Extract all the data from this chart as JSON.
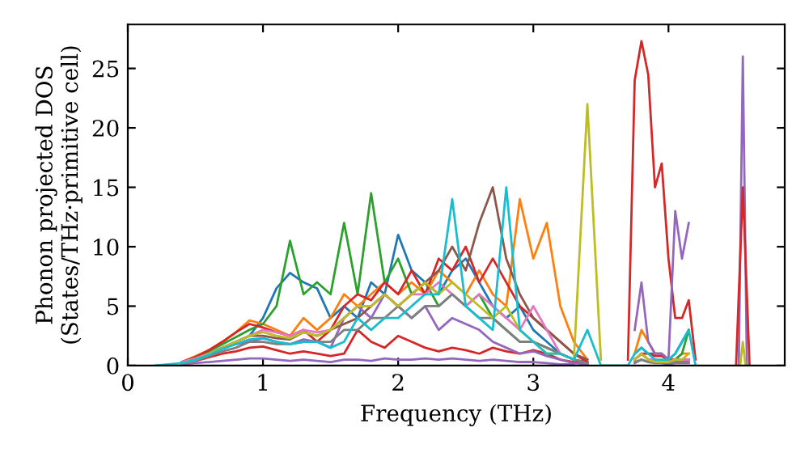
{
  "chart_data": {
    "type": "line",
    "xlabel": "Frequency (THz)",
    "ylabel": "Phonon projected DOS\n(States/THz·primitive cell)",
    "x": [
      0.2,
      0.3,
      0.4,
      0.5,
      0.6,
      0.7,
      0.8,
      0.9,
      1.0,
      1.1,
      1.2,
      1.3,
      1.4,
      1.5,
      1.6,
      1.7,
      1.8,
      1.9,
      2.0,
      2.1,
      2.2,
      2.3,
      2.4,
      2.5,
      2.6,
      2.7,
      2.8,
      2.9,
      3.0,
      3.1,
      3.2,
      3.3,
      3.4,
      3.5,
      3.6,
      3.65,
      3.7,
      3.75,
      3.8,
      3.85,
      3.9,
      3.95,
      4.0,
      4.05,
      4.1,
      4.15,
      4.2
    ],
    "series": [
      {
        "color": "#1f77b4",
        "values": [
          null,
          null,
          0.3,
          0.6,
          1,
          1.5,
          2,
          2.5,
          4,
          6.5,
          7.8,
          7,
          6.5,
          4,
          5,
          4,
          7,
          6,
          11,
          8,
          7,
          6,
          8,
          9,
          7,
          5,
          4,
          5,
          3,
          2,
          1,
          0.5,
          0.3,
          null,
          null,
          null,
          null,
          1,
          1.5,
          1,
          1,
          1,
          0.5,
          1,
          2,
          3,
          null
        ]
      },
      {
        "color": "#ff7f0e",
        "values": [
          null,
          null,
          0.3,
          0.8,
          1.3,
          2,
          2.8,
          3.8,
          3.5,
          3,
          2.5,
          4,
          3,
          4,
          6,
          5,
          6,
          7,
          6,
          7,
          6,
          8,
          7,
          6,
          8,
          6,
          5,
          14,
          9,
          12,
          5,
          2,
          0.5,
          null,
          null,
          null,
          null,
          1,
          3,
          2,
          1,
          1,
          0.5,
          0.5,
          1,
          1,
          null
        ]
      },
      {
        "color": "#2ca02c",
        "values": [
          null,
          null,
          0.3,
          0.7,
          1.2,
          1.8,
          2.4,
          3,
          3.5,
          5,
          10.5,
          6,
          7,
          6,
          12,
          6,
          14.5,
          7,
          9,
          6,
          7,
          5,
          6,
          5,
          6,
          4,
          3,
          2,
          2,
          1.5,
          1,
          0.5,
          0.2,
          null,
          null,
          null,
          null,
          0.5,
          1,
          0.5,
          0.3,
          0.3,
          0.3,
          0.5,
          1,
          3,
          null
        ]
      },
      {
        "color": "#d62728",
        "values": [
          null,
          null,
          0.3,
          0.7,
          1.3,
          2,
          2.8,
          3.5,
          3.2,
          2.8,
          2.5,
          3,
          2,
          3,
          5,
          6,
          5.5,
          7,
          6,
          8,
          6,
          9,
          8,
          10,
          7,
          9,
          7,
          5,
          4,
          3,
          2,
          1,
          0.3,
          null,
          null,
          null,
          0.5,
          24,
          27.3,
          24.5,
          15,
          17,
          9,
          4,
          4,
          5.5,
          0.5
        ]
      },
      {
        "color": "#d62728",
        "values": [
          null,
          null,
          0.2,
          0.4,
          0.7,
          1,
          1.2,
          1.5,
          1.6,
          1.3,
          1.0,
          1.2,
          1.0,
          0.8,
          1.0,
          3.0,
          2.0,
          1.5,
          2.5,
          2.0,
          1.5,
          1.2,
          1.5,
          1.3,
          1.0,
          1.5,
          1.2,
          1,
          1.3,
          1,
          0.5,
          0.3,
          0.1,
          null,
          null,
          null,
          null,
          0.5,
          1,
          1,
          0.8,
          0.8,
          0.5,
          0.5,
          0.5,
          0.5,
          null
        ]
      },
      {
        "color": "#9467bd",
        "values": [
          null,
          null,
          0.3,
          0.6,
          1,
          1.5,
          1.8,
          2,
          2.3,
          2,
          1.8,
          2.2,
          2,
          1.5,
          4,
          5,
          4,
          6,
          5,
          4,
          5,
          3,
          4,
          3.5,
          3,
          2,
          1.5,
          1,
          1.2,
          0.8,
          0.5,
          0.2,
          0.1,
          null,
          null,
          null,
          null,
          3,
          7,
          2,
          1,
          1,
          0.5,
          13,
          9,
          12,
          null
        ]
      },
      {
        "color": "#9467bd",
        "values": [
          null,
          null,
          0.1,
          0.2,
          0.3,
          0.4,
          0.5,
          0.6,
          0.6,
          0.5,
          0.4,
          0.5,
          0.4,
          0.3,
          0.5,
          0.5,
          0.4,
          0.6,
          0.5,
          0.5,
          0.6,
          0.5,
          0.6,
          0.5,
          0.4,
          0.5,
          0.4,
          0.3,
          0.3,
          0.2,
          0.1,
          0.1,
          null,
          null,
          null,
          null,
          null,
          0.2,
          0.5,
          0.3,
          0.2,
          0.2,
          0.1,
          0.2,
          0.2,
          0.2,
          null
        ]
      },
      {
        "color": "#8c564b",
        "values": [
          null,
          null,
          0.2,
          0.5,
          1,
          1.5,
          2,
          2.5,
          2.5,
          2.3,
          2.2,
          2.8,
          2.5,
          3,
          3.5,
          4,
          5,
          6,
          5,
          6,
          7,
          8,
          10,
          8,
          12,
          15,
          9,
          6,
          4,
          3,
          2,
          1,
          0.5,
          null,
          null,
          null,
          null,
          0.5,
          1,
          0.5,
          0.5,
          0.3,
          0.3,
          0.5,
          0.5,
          0.5,
          null
        ]
      },
      {
        "color": "#e377c2",
        "values": [
          null,
          null,
          0.3,
          0.6,
          1,
          1.5,
          2,
          2.5,
          3,
          2.8,
          2.5,
          3,
          2.8,
          3,
          4,
          5,
          5,
          6,
          5,
          6,
          6,
          7,
          6,
          5,
          6,
          5,
          4,
          3,
          5,
          3,
          1,
          0.5,
          0.2,
          null,
          null,
          null,
          null,
          0.5,
          1,
          0.5,
          0.5,
          0.3,
          0.3,
          0.5,
          0.5,
          0.5,
          null
        ]
      },
      {
        "color": "#7f7f7f",
        "values": [
          null,
          null,
          0.2,
          0.4,
          0.8,
          1.2,
          1.5,
          2,
          2,
          1.8,
          1.8,
          2,
          2,
          2,
          3,
          3,
          4,
          4,
          5,
          4,
          5,
          5,
          6,
          5,
          4,
          4,
          3,
          2,
          2,
          1.5,
          1,
          0.5,
          0.2,
          null,
          null,
          null,
          null,
          0.3,
          0.5,
          0.3,
          0.3,
          0.2,
          0.2,
          0.3,
          0.3,
          0.3,
          null
        ]
      },
      {
        "color": "#bcbd22",
        "values": [
          null,
          null,
          0.2,
          0.5,
          1,
          1.5,
          2,
          2.5,
          2.8,
          2.5,
          2.3,
          2.8,
          2.5,
          3,
          4,
          5,
          5,
          6,
          5,
          6,
          7,
          6,
          7,
          6,
          5,
          4,
          5,
          3,
          2,
          1,
          1,
          0.5,
          22,
          0.5,
          null,
          null,
          null,
          0.5,
          1,
          0.5,
          0.3,
          0.3,
          0.3,
          0.5,
          0.5,
          1,
          null
        ]
      },
      {
        "color": "#17becf",
        "values": [
          0,
          0.1,
          0.2,
          0.5,
          0.9,
          1.4,
          1.8,
          2.2,
          2.3,
          2,
          1.8,
          2,
          2,
          1.5,
          2,
          4,
          3,
          4,
          4,
          5,
          6,
          6,
          14,
          5,
          4,
          3,
          15,
          3,
          2,
          1,
          1,
          0.5,
          3,
          0,
          0,
          0,
          0,
          1,
          1.5,
          1,
          0.5,
          0.5,
          0.5,
          1,
          2,
          3,
          0
        ]
      },
      {
        "color": "#9467bd",
        "x": [
          4.52,
          4.55,
          4.58
        ],
        "values": [
          0,
          26,
          0
        ]
      },
      {
        "color": "#d62728",
        "x": [
          4.5,
          4.55,
          4.6
        ],
        "values": [
          0,
          15,
          0
        ]
      },
      {
        "color": "#bcbd22",
        "x": [
          4.53,
          4.55,
          4.57
        ],
        "values": [
          0,
          2,
          0
        ]
      }
    ],
    "xlim": [
      0,
      4.86
    ],
    "ylim": [
      0,
      28.7
    ],
    "xticks": [
      0,
      1,
      2,
      3,
      4
    ],
    "yticks": [
      0,
      5,
      10,
      15,
      20,
      25
    ]
  }
}
